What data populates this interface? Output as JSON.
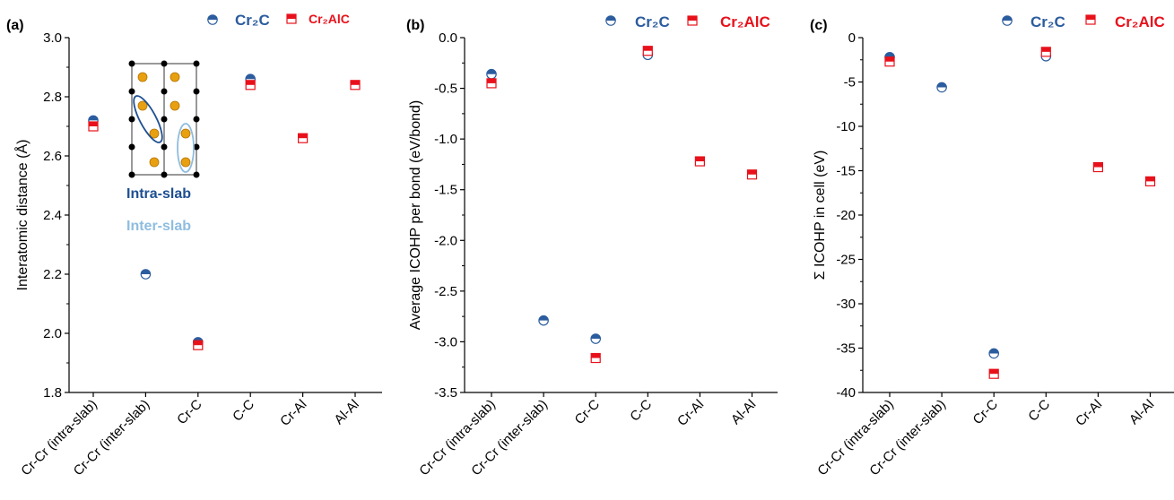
{
  "legend": {
    "cr2c_label": "Cr₂C",
    "cr2alc_label": "Cr₂AlC"
  },
  "colors": {
    "cr2c": "#2b5c9e",
    "cr2alc": "#e8111b",
    "intra_slab": "#1d4f91",
    "inter_slab": "#8fbde0",
    "atom": "#e8a010"
  },
  "inset": {
    "intra_label": "Intra-slab",
    "inter_label": "Inter-slab"
  },
  "chart_data": [
    {
      "type": "scatter",
      "panel": "(a)",
      "ylabel": "Interatomic distance (Å)",
      "ylim": [
        1.8,
        3.0
      ],
      "yticks": [
        "1.8",
        "2.0",
        "2.2",
        "2.4",
        "2.6",
        "2.8",
        "3.0"
      ],
      "categories": [
        "Cr-Cr (intra-slab)",
        "Cr-Cr (inter-slab)",
        "Cr-C",
        "C-C",
        "Cr-Al",
        "Al-Al"
      ],
      "series": [
        {
          "name": "Cr₂C",
          "values": [
            2.72,
            2.2,
            1.97,
            2.86,
            null,
            null
          ]
        },
        {
          "name": "Cr₂AlC",
          "values": [
            2.7,
            null,
            1.96,
            2.84,
            2.66,
            2.84
          ]
        }
      ]
    },
    {
      "type": "scatter",
      "panel": "(b)",
      "ylabel": "Average ICOHP per bond (eV/bond)",
      "ylim": [
        -3.5,
        0.0
      ],
      "yticks": [
        "-3.5",
        "-3.0",
        "-2.5",
        "-2.0",
        "-1.5",
        "-1.0",
        "-0.5",
        "0.0"
      ],
      "categories": [
        "Cr-Cr (intra-slab)",
        "Cr-Cr (inter-slab)",
        "Cr-C",
        "C-C",
        "Cr-Al",
        "Al-Al"
      ],
      "series": [
        {
          "name": "Cr₂C",
          "values": [
            -0.36,
            -2.79,
            -2.97,
            -0.17,
            null,
            null
          ]
        },
        {
          "name": "Cr₂AlC",
          "values": [
            -0.45,
            null,
            -3.16,
            -0.13,
            -1.22,
            -1.35
          ]
        }
      ]
    },
    {
      "type": "scatter",
      "panel": "(c)",
      "ylabel": "Σ ICOHP in cell (eV)",
      "ylim": [
        -40,
        0
      ],
      "yticks": [
        "-40",
        "-35",
        "-30",
        "-25",
        "-20",
        "-15",
        "-10",
        "-5",
        "0"
      ],
      "categories": [
        "Cr-Cr (intra-slab)",
        "Cr-Cr (inter-slab)",
        "Cr-C",
        "C-C",
        "Cr-Al",
        "Al-Al"
      ],
      "series": [
        {
          "name": "Cr₂C",
          "values": [
            -2.2,
            -5.6,
            -35.6,
            -2.1,
            null,
            null
          ]
        },
        {
          "name": "Cr₂AlC",
          "values": [
            -2.7,
            null,
            -37.9,
            -1.6,
            -14.6,
            -16.2
          ]
        }
      ]
    }
  ]
}
